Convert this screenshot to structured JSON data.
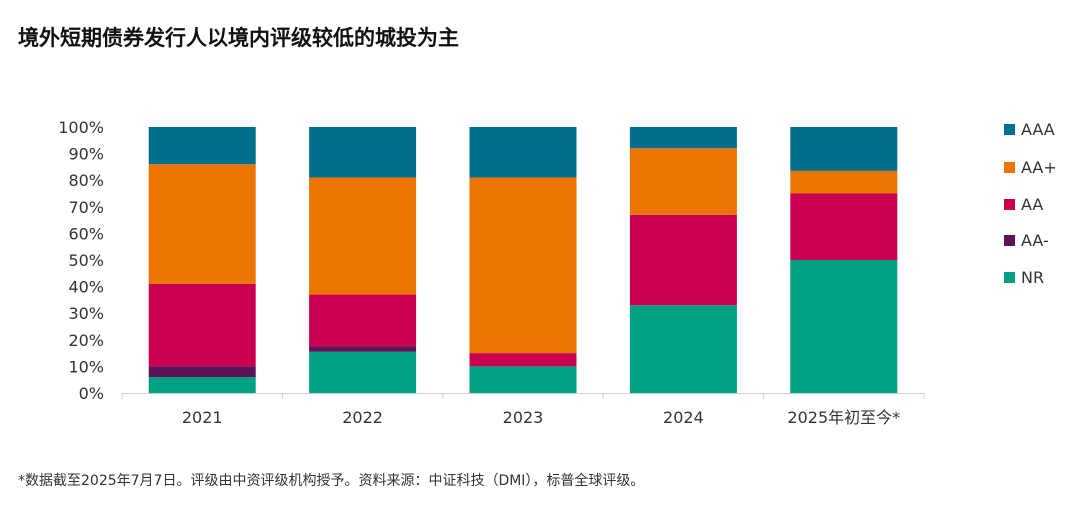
{
  "title": "境外短期债券发行人以境内评级较低的城投为主",
  "footnote": "*数据截至2025年7月7日。评级由中资评级机构授予。资料来源：中证科技（DMI），标普全球评级。",
  "colors": {
    "AAA": "#006F8E",
    "AA+": "#EC7400",
    "AA": "#C8004F",
    "AA-": "#5B1457",
    "NR": "#00A082"
  },
  "chart_data": {
    "type": "bar",
    "stacked": true,
    "categories": [
      "2021",
      "2022",
      "2023",
      "2024",
      "2025年初至今*"
    ],
    "series": [
      {
        "name": "NR",
        "values": [
          6,
          15.5,
          10,
          33,
          50
        ]
      },
      {
        "name": "AA-",
        "values": [
          4,
          2,
          0,
          0,
          0
        ]
      },
      {
        "name": "AA",
        "values": [
          31,
          19.5,
          5,
          34,
          25
        ]
      },
      {
        "name": "AA+",
        "values": [
          45,
          44,
          66,
          25,
          8.5
        ]
      },
      {
        "name": "AAA",
        "values": [
          14,
          19,
          19,
          8,
          16.5
        ]
      }
    ],
    "y_ticks": [
      "0%",
      "10%",
      "20%",
      "30%",
      "40%",
      "50%",
      "60%",
      "70%",
      "80%",
      "90%",
      "100%"
    ],
    "ylim": [
      0,
      100
    ],
    "legend_order": [
      "AAA",
      "AA+",
      "AA",
      "AA-",
      "NR"
    ],
    "legend_position": "right",
    "grid": false
  }
}
